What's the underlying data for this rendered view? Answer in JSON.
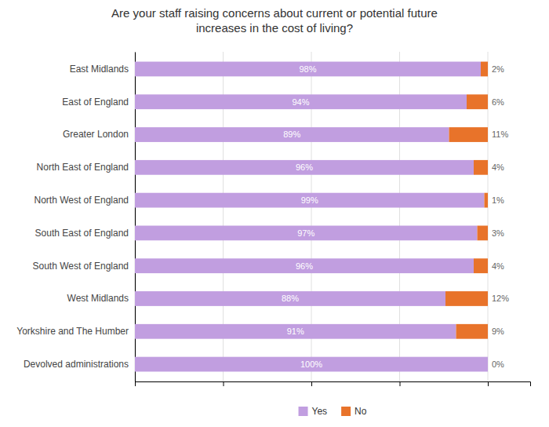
{
  "chart_data": {
    "type": "bar",
    "orientation": "horizontal",
    "stacked": true,
    "title": "Are your staff raising concerns about current or potential future\nincreases in the cost of living?",
    "categories": [
      "East Midlands",
      "East of England",
      "Greater London",
      "North East of England",
      "North West of England",
      "South East of England",
      "South West of England",
      "West Midlands",
      "Yorkshire and The Humber",
      "Devolved administrations"
    ],
    "series": [
      {
        "name": "Yes",
        "color": "#c19ee0",
        "values": [
          98,
          94,
          89,
          96,
          99,
          97,
          96,
          88,
          91,
          100
        ],
        "value_labels": [
          "98%",
          "94%",
          "89%",
          "96%",
          "99%",
          "97%",
          "96%",
          "88%",
          "91%",
          "100%"
        ]
      },
      {
        "name": "No",
        "color": "#e8732a",
        "values": [
          2,
          6,
          11,
          4,
          1,
          3,
          4,
          12,
          9,
          0
        ],
        "value_labels": [
          "2%",
          "6%",
          "11%",
          "4%",
          "1%",
          "3%",
          "4%",
          "12%",
          "9%",
          "0%"
        ]
      }
    ],
    "xlim": [
      0,
      112
    ],
    "xticks": [
      0,
      25,
      50,
      75,
      100
    ],
    "grid": true,
    "legend": "bottom",
    "data_labels": true,
    "tick_labels": "y"
  }
}
